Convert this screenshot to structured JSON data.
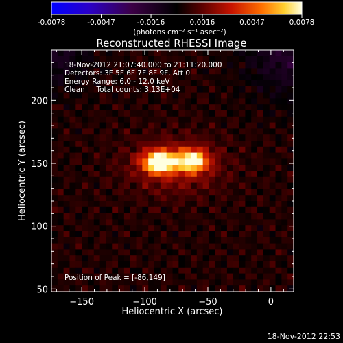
{
  "colorbar": {
    "tick_labels": [
      "-0.0078",
      "-0.0047",
      "-0.0016",
      "0.0016",
      "0.0047",
      "0.0078"
    ],
    "unit_label": "(photons cm⁻² s⁻¹ asec⁻²)",
    "range": [
      -0.0078,
      0.0078
    ]
  },
  "chart_data": {
    "type": "heatmap",
    "title": "Reconstructed RHESSI Image",
    "xlabel": "Heliocentric X (arcsec)",
    "ylabel": "Heliocentric Y (arcsec)",
    "xlim": [
      -174,
      18
    ],
    "ylim": [
      48,
      240
    ],
    "x_ticks": [
      -150,
      -100,
      -50,
      0
    ],
    "y_ticks": [
      50,
      100,
      150,
      200
    ],
    "x_tick_labels": [
      "−150",
      "−100",
      "−50",
      "0"
    ],
    "y_tick_labels": [
      "50",
      "100",
      "150",
      "200"
    ],
    "peak": {
      "x": -86,
      "y": 149
    },
    "sources": [
      {
        "x": -88,
        "y": 151,
        "sx": 9,
        "sy": 6,
        "amp": 0.0078
      },
      {
        "x": -62,
        "y": 152,
        "sx": 8,
        "sy": 6,
        "amp": 0.0068
      },
      {
        "x": -76,
        "y": 148,
        "sx": 26,
        "sy": 15,
        "amp": 0.0022
      }
    ],
    "annotations": [
      "18-Nov-2012 21:07:40.000 to 21:11:20.000",
      "Detectors: 3F 5F 6F 7F 8F 9F, Att 0",
      "Energy Range: 6.0 - 12.0 keV",
      "Clean     Total counts: 3.13E+04"
    ],
    "peak_label": "Position of Peak = [-86,149]"
  },
  "footer": {
    "timestamp": "18-Nov-2012 22:53"
  }
}
